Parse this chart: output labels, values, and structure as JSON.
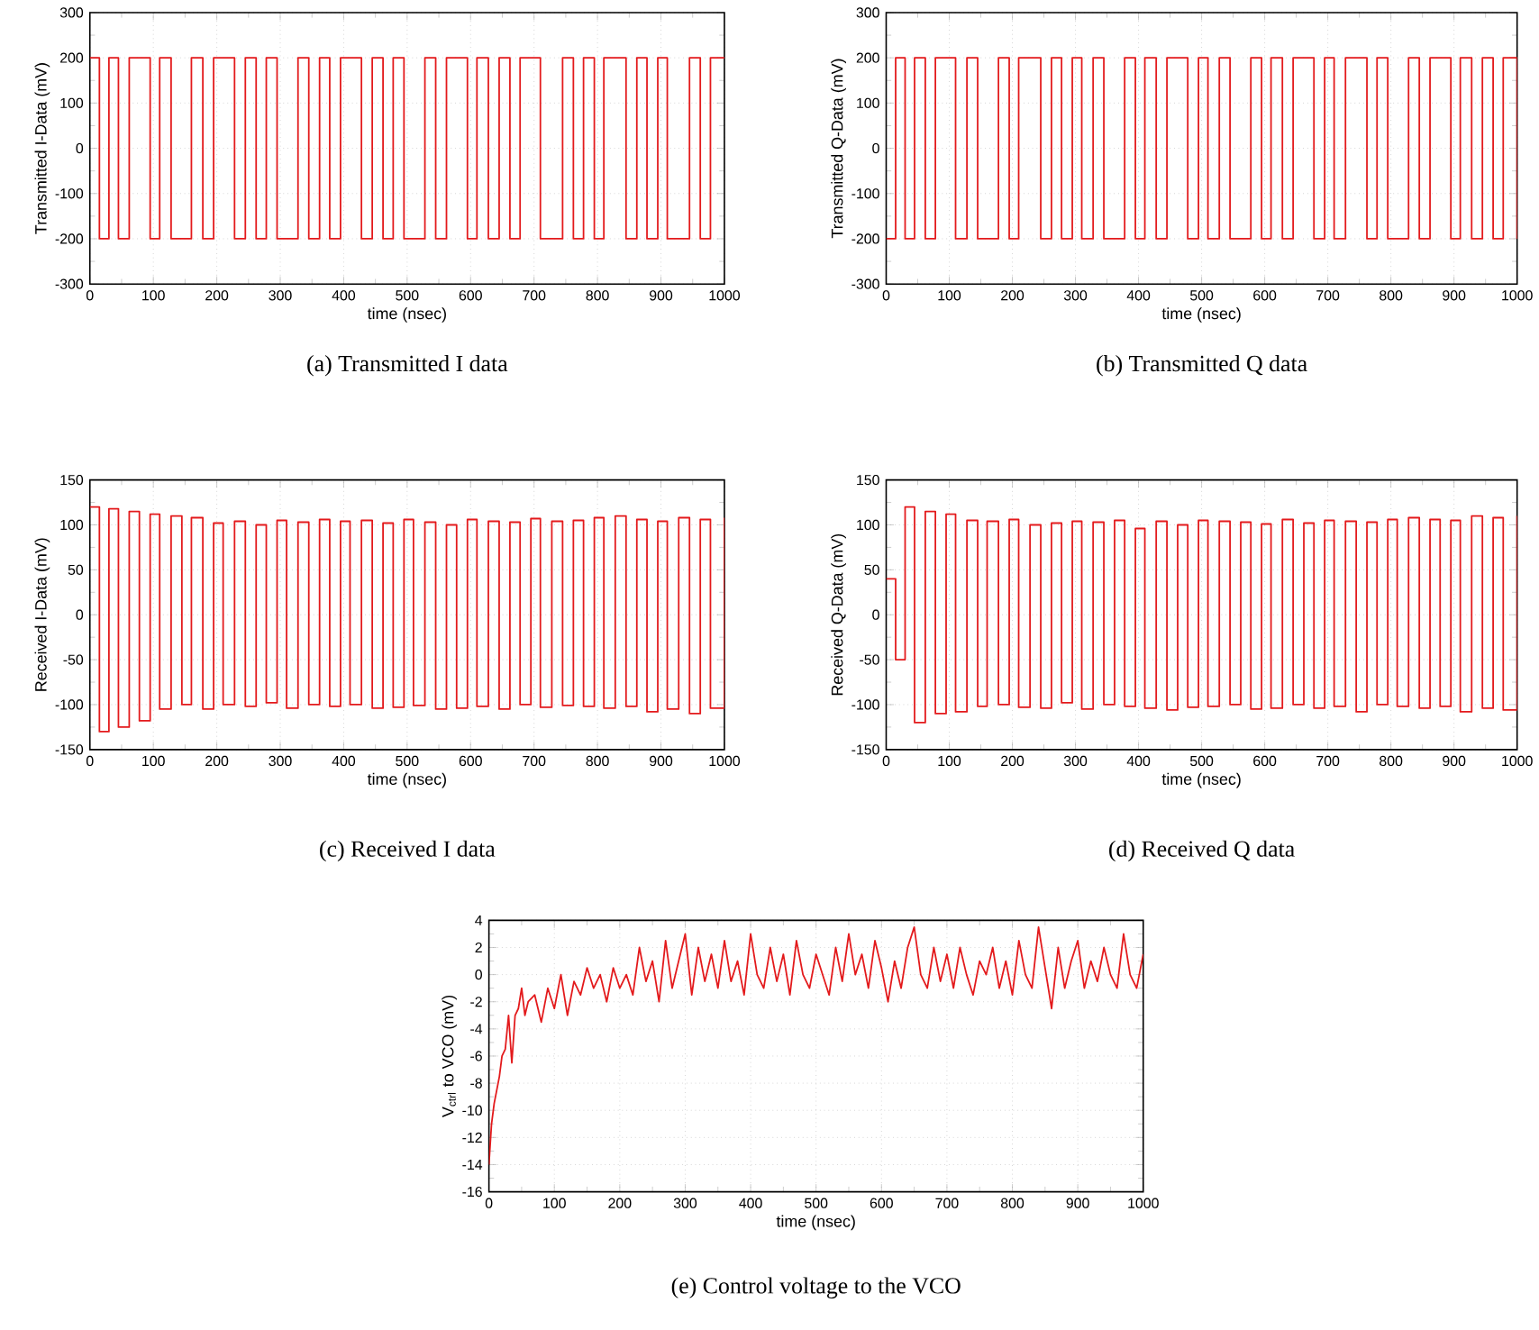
{
  "chart_data": [
    {
      "type": "step",
      "title": "(a) Transmitted I data",
      "xlabel": "time (nsec)",
      "ylabel": "Transmitted I-Data (mV)",
      "color": "#e31a1c",
      "grid": true,
      "xlim": [
        0,
        1000
      ],
      "ylim": [
        -300,
        300
      ],
      "xticks": [
        0,
        100,
        200,
        300,
        400,
        500,
        600,
        700,
        800,
        900,
        1000
      ],
      "yticks": [
        -300,
        -200,
        -100,
        0,
        100,
        200,
        300
      ],
      "x": [
        0,
        15,
        30,
        45,
        62,
        78,
        95,
        110,
        128,
        145,
        160,
        178,
        195,
        210,
        228,
        245,
        262,
        278,
        295,
        310,
        328,
        345,
        362,
        378,
        395,
        410,
        428,
        445,
        462,
        478,
        495,
        510,
        528,
        545,
        562,
        578,
        595,
        610,
        628,
        645,
        662,
        678,
        695,
        710,
        728,
        745,
        762,
        778,
        795,
        810,
        828,
        845,
        862,
        878,
        895,
        910,
        928,
        945,
        962,
        978,
        1000
      ],
      "values": [
        200,
        -200,
        200,
        -200,
        200,
        200,
        -200,
        200,
        -200,
        -200,
        200,
        -200,
        200,
        200,
        -200,
        200,
        -200,
        200,
        -200,
        -200,
        200,
        -200,
        200,
        -200,
        200,
        200,
        -200,
        200,
        -200,
        200,
        -200,
        -200,
        200,
        -200,
        200,
        200,
        -200,
        200,
        -200,
        200,
        -200,
        200,
        200,
        -200,
        -200,
        200,
        -200,
        200,
        -200,
        200,
        200,
        -200,
        200,
        -200,
        200,
        -200,
        -200,
        200,
        -200,
        200,
        200
      ]
    },
    {
      "type": "step",
      "title": "(b) Transmitted Q data",
      "xlabel": "time (nsec)",
      "ylabel": "Transmitted Q-Data (mV)",
      "color": "#e31a1c",
      "grid": true,
      "xlim": [
        0,
        1000
      ],
      "ylim": [
        -300,
        300
      ],
      "xticks": [
        0,
        100,
        200,
        300,
        400,
        500,
        600,
        700,
        800,
        900,
        1000
      ],
      "yticks": [
        -300,
        -200,
        -100,
        0,
        100,
        200,
        300
      ],
      "x": [
        0,
        15,
        30,
        45,
        62,
        78,
        95,
        110,
        128,
        145,
        160,
        178,
        195,
        210,
        228,
        245,
        262,
        278,
        295,
        310,
        328,
        345,
        362,
        378,
        395,
        410,
        428,
        445,
        462,
        478,
        495,
        510,
        528,
        545,
        562,
        578,
        595,
        610,
        628,
        645,
        662,
        678,
        695,
        710,
        728,
        745,
        762,
        778,
        795,
        810,
        828,
        845,
        862,
        878,
        895,
        910,
        928,
        945,
        962,
        978,
        1000
      ],
      "values": [
        -200,
        200,
        -200,
        200,
        -200,
        200,
        200,
        -200,
        200,
        -200,
        -200,
        200,
        -200,
        200,
        200,
        -200,
        200,
        -200,
        200,
        -200,
        200,
        -200,
        -200,
        200,
        -200,
        200,
        -200,
        200,
        200,
        -200,
        200,
        -200,
        200,
        -200,
        -200,
        200,
        -200,
        200,
        -200,
        200,
        200,
        -200,
        200,
        -200,
        200,
        200,
        -200,
        200,
        -200,
        -200,
        200,
        -200,
        200,
        200,
        -200,
        200,
        -200,
        200,
        -200,
        200,
        -200
      ]
    },
    {
      "type": "step",
      "title": "(c) Received I data",
      "xlabel": "time (nsec)",
      "ylabel": "Received I-Data (mV)",
      "color": "#e31a1c",
      "grid": true,
      "xlim": [
        0,
        1000
      ],
      "ylim": [
        -150,
        150
      ],
      "xticks": [
        0,
        100,
        200,
        300,
        400,
        500,
        600,
        700,
        800,
        900,
        1000
      ],
      "yticks": [
        -150,
        -100,
        -50,
        0,
        50,
        100,
        150
      ],
      "x": [
        0,
        15,
        30,
        45,
        62,
        78,
        95,
        110,
        128,
        145,
        160,
        178,
        195,
        210,
        228,
        245,
        262,
        278,
        295,
        310,
        328,
        345,
        362,
        378,
        395,
        410,
        428,
        445,
        462,
        478,
        495,
        510,
        528,
        545,
        562,
        578,
        595,
        610,
        628,
        645,
        662,
        678,
        695,
        710,
        728,
        745,
        762,
        778,
        795,
        810,
        828,
        845,
        862,
        878,
        895,
        910,
        928,
        945,
        962,
        978,
        1000
      ],
      "values": [
        120,
        -130,
        118,
        -125,
        115,
        -118,
        112,
        -105,
        110,
        -100,
        108,
        -105,
        102,
        -100,
        104,
        -102,
        100,
        -98,
        105,
        -104,
        103,
        -100,
        106,
        -102,
        104,
        -100,
        105,
        -104,
        102,
        -103,
        106,
        -101,
        103,
        -105,
        100,
        -104,
        106,
        -102,
        104,
        -105,
        103,
        -100,
        107,
        -103,
        104,
        -101,
        105,
        -102,
        108,
        -104,
        110,
        -102,
        106,
        -108,
        104,
        -105,
        108,
        -110,
        106,
        -104,
        108
      ]
    },
    {
      "type": "step",
      "title": "(d) Received Q data",
      "xlabel": "time (nsec)",
      "ylabel": "Received Q-Data (mV)",
      "color": "#e31a1c",
      "grid": true,
      "xlim": [
        0,
        1000
      ],
      "ylim": [
        -150,
        150
      ],
      "xticks": [
        0,
        100,
        200,
        300,
        400,
        500,
        600,
        700,
        800,
        900,
        1000
      ],
      "yticks": [
        -150,
        -100,
        -50,
        0,
        50,
        100,
        150
      ],
      "x": [
        0,
        15,
        30,
        45,
        62,
        78,
        95,
        110,
        128,
        145,
        160,
        178,
        195,
        210,
        228,
        245,
        262,
        278,
        295,
        310,
        328,
        345,
        362,
        378,
        395,
        410,
        428,
        445,
        462,
        478,
        495,
        510,
        528,
        545,
        562,
        578,
        595,
        610,
        628,
        645,
        662,
        678,
        695,
        710,
        728,
        745,
        762,
        778,
        795,
        810,
        828,
        845,
        862,
        878,
        895,
        910,
        928,
        945,
        962,
        978,
        1000
      ],
      "values": [
        40,
        -50,
        120,
        -120,
        115,
        -110,
        112,
        -108,
        105,
        -102,
        104,
        -100,
        106,
        -103,
        100,
        -104,
        102,
        -98,
        104,
        -105,
        103,
        -100,
        105,
        -102,
        96,
        -104,
        104,
        -106,
        100,
        -103,
        105,
        -102,
        104,
        -100,
        103,
        -105,
        101,
        -104,
        106,
        -100,
        102,
        -104,
        105,
        -102,
        104,
        -108,
        103,
        -100,
        106,
        -102,
        108,
        -104,
        106,
        -102,
        105,
        -108,
        110,
        -104,
        108,
        -106,
        110
      ]
    },
    {
      "type": "line",
      "title": "(e) Control voltage to the VCO",
      "xlabel": "time (nsec)",
      "ylabel": "V$_{ctrl}$ to VCO (mV)",
      "color": "#e31a1c",
      "grid": true,
      "xlim": [
        0,
        1000
      ],
      "ylim": [
        -16,
        4
      ],
      "xticks": [
        0,
        100,
        200,
        300,
        400,
        500,
        600,
        700,
        800,
        900,
        1000
      ],
      "yticks": [
        -16,
        -14,
        -12,
        -10,
        -8,
        -6,
        -4,
        -2,
        0,
        2,
        4
      ],
      "x": [
        0,
        4,
        8,
        12,
        16,
        20,
        25,
        30,
        35,
        40,
        45,
        50,
        55,
        60,
        70,
        80,
        90,
        100,
        110,
        120,
        130,
        140,
        150,
        160,
        170,
        180,
        190,
        200,
        210,
        220,
        230,
        240,
        250,
        260,
        270,
        280,
        290,
        300,
        310,
        320,
        330,
        340,
        350,
        360,
        370,
        380,
        390,
        400,
        410,
        420,
        430,
        440,
        450,
        460,
        470,
        480,
        490,
        500,
        510,
        520,
        530,
        540,
        550,
        560,
        570,
        580,
        590,
        600,
        610,
        620,
        630,
        640,
        650,
        660,
        670,
        680,
        690,
        700,
        710,
        720,
        730,
        740,
        750,
        760,
        770,
        780,
        790,
        800,
        810,
        820,
        830,
        840,
        850,
        860,
        870,
        880,
        890,
        900,
        910,
        920,
        930,
        940,
        950,
        960,
        970,
        980,
        990,
        1000
      ],
      "values": [
        -14,
        -11,
        -9.5,
        -8.5,
        -7.5,
        -6,
        -5.5,
        -3,
        -6.5,
        -3,
        -2.5,
        -1,
        -3,
        -2,
        -1.5,
        -3.5,
        -1,
        -2.5,
        0,
        -3,
        -0.5,
        -1.5,
        0.5,
        -1,
        0,
        -2,
        0.5,
        -1,
        0,
        -1.5,
        2,
        -0.5,
        1,
        -2,
        2.5,
        -1,
        1,
        3,
        -1.5,
        2,
        -0.5,
        1.5,
        -1,
        2.5,
        -0.5,
        1,
        -1.5,
        3,
        0,
        -1,
        2,
        -0.5,
        1.5,
        -1.5,
        2.5,
        0,
        -1,
        1.5,
        0,
        -1.5,
        2,
        -0.5,
        3,
        0,
        1.5,
        -1,
        2.5,
        0.5,
        -2,
        1,
        -1,
        2,
        3.5,
        0,
        -1,
        2,
        -0.5,
        1.5,
        -1,
        2,
        0,
        -1.5,
        1,
        0,
        2,
        -1,
        1,
        -1.5,
        2.5,
        0,
        -1,
        3.5,
        0.5,
        -2.5,
        2,
        -1,
        1,
        2.5,
        -1,
        1,
        -0.5,
        2,
        0,
        -1,
        3,
        0,
        -1,
        1.5
      ]
    }
  ]
}
